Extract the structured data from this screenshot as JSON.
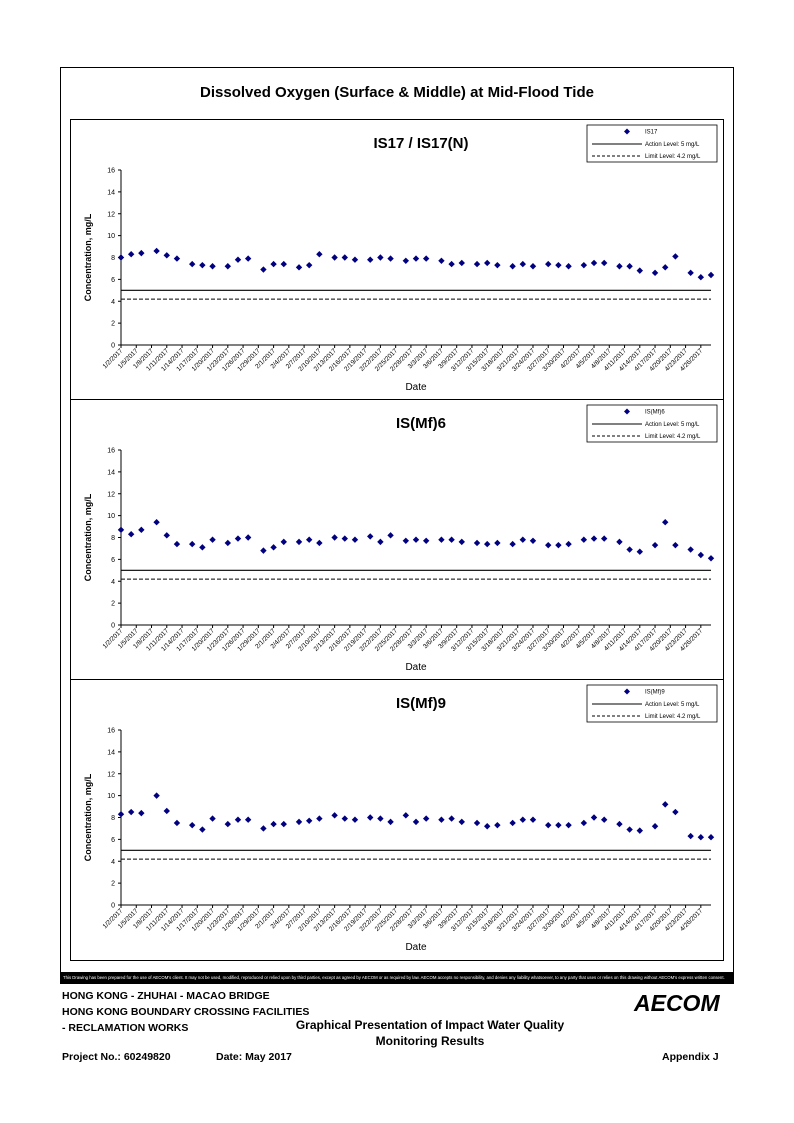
{
  "page": {
    "main_title": "Dissolved Oxygen (Surface & Middle) at Mid-Flood Tide",
    "disclaimer": "This Drawing has been prepared for the use of AECOM's client. It may not be used, modified, reproduced or relied upon by third parties, except as agreed by AECOM or as required by law. AECOM accepts no responsibility, and denies any liability whatsoever, to any party that uses or relies on this drawing without AECOM's express written consent.",
    "footer": {
      "line1": "HONG KONG - ZHUHAI - MACAO BRIDGE",
      "line2": "HONG KONG BOUNDARY CROSSING FACILITIES",
      "line3": "- RECLAMATION WORKS",
      "center_line1": "Graphical Presentation of Impact Water Quality",
      "center_line2": "Monitoring Results",
      "project": "Project No.: 60249820",
      "date": "Date: May 2017",
      "appendix": "Appendix J",
      "logo": "AECOM"
    }
  },
  "chart_data": [
    {
      "type": "scatter",
      "title": "IS17 / IS17(N)",
      "xlabel": "Date",
      "ylabel": "Concentration, mg/L",
      "ylim": [
        0,
        16
      ],
      "yticks": [
        0,
        2,
        4,
        6,
        8,
        10,
        12,
        14,
        16
      ],
      "categories": [
        "1/2/2017",
        "1/5/2017",
        "1/8/2017",
        "1/11/2017",
        "1/14/2017",
        "1/17/2017",
        "1/20/2017",
        "1/23/2017",
        "1/26/2017",
        "1/29/2017",
        "2/1/2017",
        "2/4/2017",
        "2/7/2017",
        "2/10/2017",
        "2/13/2017",
        "2/16/2017",
        "2/19/2017",
        "2/22/2017",
        "2/25/2017",
        "2/28/2017",
        "3/3/2017",
        "3/6/2017",
        "3/9/2017",
        "3/12/2017",
        "3/15/2017",
        "3/18/2017",
        "3/21/2017",
        "3/24/2017",
        "3/27/2017",
        "3/30/2017",
        "4/2/2017",
        "4/5/2017",
        "4/8/2017",
        "4/11/2017",
        "4/14/2017",
        "4/17/2017",
        "4/20/2017",
        "4/23/2017",
        "4/26/2017"
      ],
      "series": [
        {
          "name": "IS17",
          "marker": "diamond",
          "color": "#000080",
          "x": [
            0,
            2,
            4,
            7,
            9,
            11,
            14,
            16,
            18,
            21,
            23,
            25,
            28,
            30,
            32,
            35,
            37,
            39,
            42,
            44,
            46,
            49,
            51,
            53,
            56,
            58,
            60,
            63,
            65,
            67,
            70,
            72,
            74,
            77,
            79,
            81,
            84,
            86,
            88,
            91,
            93,
            95,
            98,
            100,
            102,
            105,
            107,
            109,
            112,
            114,
            116
          ],
          "y": [
            8.0,
            8.3,
            8.4,
            8.6,
            8.2,
            7.9,
            7.4,
            7.3,
            7.2,
            7.2,
            7.8,
            7.9,
            6.9,
            7.4,
            7.4,
            7.1,
            7.3,
            8.3,
            8.0,
            8.0,
            7.8,
            7.8,
            8.0,
            7.9,
            7.7,
            7.9,
            7.9,
            7.7,
            7.4,
            7.5,
            7.4,
            7.5,
            7.3,
            7.2,
            7.4,
            7.2,
            7.4,
            7.3,
            7.2,
            7.3,
            7.5,
            7.5,
            7.2,
            7.2,
            6.8,
            6.6,
            7.1,
            8.1,
            6.6,
            6.2,
            6.4
          ]
        },
        {
          "name": "Action Level: 5 mg/L",
          "line": "solid",
          "value": 5
        },
        {
          "name": "Limit Level: 4.2 mg/L",
          "line": "dashed",
          "value": 4.2
        }
      ],
      "legend": "top-right"
    },
    {
      "type": "scatter",
      "title": "IS(Mf)6",
      "xlabel": "Date",
      "ylabel": "Concentration, mg/L",
      "ylim": [
        0,
        16
      ],
      "yticks": [
        0,
        2,
        4,
        6,
        8,
        10,
        12,
        14,
        16
      ],
      "categories": [
        "1/2/2017",
        "1/5/2017",
        "1/8/2017",
        "1/11/2017",
        "1/14/2017",
        "1/17/2017",
        "1/20/2017",
        "1/23/2017",
        "1/26/2017",
        "1/29/2017",
        "2/1/2017",
        "2/4/2017",
        "2/7/2017",
        "2/10/2017",
        "2/13/2017",
        "2/16/2017",
        "2/19/2017",
        "2/22/2017",
        "2/25/2017",
        "2/28/2017",
        "3/3/2017",
        "3/6/2017",
        "3/9/2017",
        "3/12/2017",
        "3/15/2017",
        "3/18/2017",
        "3/21/2017",
        "3/24/2017",
        "3/27/2017",
        "3/30/2017",
        "4/2/2017",
        "4/5/2017",
        "4/8/2017",
        "4/11/2017",
        "4/14/2017",
        "4/17/2017",
        "4/20/2017",
        "4/23/2017",
        "4/26/2017"
      ],
      "series": [
        {
          "name": "IS(Mf)6",
          "marker": "diamond",
          "color": "#000080",
          "x": [
            0,
            2,
            4,
            7,
            9,
            11,
            14,
            16,
            18,
            21,
            23,
            25,
            28,
            30,
            32,
            35,
            37,
            39,
            42,
            44,
            46,
            49,
            51,
            53,
            56,
            58,
            60,
            63,
            65,
            67,
            70,
            72,
            74,
            77,
            79,
            81,
            84,
            86,
            88,
            91,
            93,
            95,
            98,
            100,
            102,
            105,
            107,
            109,
            112,
            114,
            116
          ],
          "y": [
            8.7,
            8.3,
            8.7,
            9.4,
            8.2,
            7.4,
            7.4,
            7.1,
            7.8,
            7.5,
            7.9,
            8.0,
            6.8,
            7.1,
            7.6,
            7.6,
            7.8,
            7.5,
            8.0,
            7.9,
            7.8,
            8.1,
            7.6,
            8.2,
            7.7,
            7.8,
            7.7,
            7.8,
            7.8,
            7.6,
            7.5,
            7.4,
            7.5,
            7.4,
            7.8,
            7.7,
            7.3,
            7.3,
            7.4,
            7.8,
            7.9,
            7.9,
            7.6,
            6.9,
            6.7,
            7.3,
            9.4,
            7.3,
            6.9,
            6.4,
            6.1
          ]
        },
        {
          "name": "Action Level: 5 mg/L",
          "line": "solid",
          "value": 5
        },
        {
          "name": "Limit Level: 4.2 mg/L",
          "line": "dashed",
          "value": 4.2
        }
      ],
      "legend": "top-right"
    },
    {
      "type": "scatter",
      "title": "IS(Mf)9",
      "xlabel": "Date",
      "ylabel": "Concentration, mg/L",
      "ylim": [
        0,
        16
      ],
      "yticks": [
        0,
        2,
        4,
        6,
        8,
        10,
        12,
        14,
        16
      ],
      "categories": [
        "1/2/2017",
        "1/5/2017",
        "1/8/2017",
        "1/11/2017",
        "1/14/2017",
        "1/17/2017",
        "1/20/2017",
        "1/23/2017",
        "1/26/2017",
        "1/29/2017",
        "2/1/2017",
        "2/4/2017",
        "2/7/2017",
        "2/10/2017",
        "2/13/2017",
        "2/16/2017",
        "2/19/2017",
        "2/22/2017",
        "2/25/2017",
        "2/28/2017",
        "3/3/2017",
        "3/6/2017",
        "3/9/2017",
        "3/12/2017",
        "3/15/2017",
        "3/18/2017",
        "3/21/2017",
        "3/24/2017",
        "3/27/2017",
        "3/30/2017",
        "4/2/2017",
        "4/5/2017",
        "4/8/2017",
        "4/11/2017",
        "4/14/2017",
        "4/17/2017",
        "4/20/2017",
        "4/23/2017",
        "4/26/2017"
      ],
      "series": [
        {
          "name": "IS(Mf)9",
          "marker": "diamond",
          "color": "#000080",
          "x": [
            0,
            2,
            4,
            7,
            9,
            11,
            14,
            16,
            18,
            21,
            23,
            25,
            28,
            30,
            32,
            35,
            37,
            39,
            42,
            44,
            46,
            49,
            51,
            53,
            56,
            58,
            60,
            63,
            65,
            67,
            70,
            72,
            74,
            77,
            79,
            81,
            84,
            86,
            88,
            91,
            93,
            95,
            98,
            100,
            102,
            105,
            107,
            109,
            112,
            114,
            116
          ],
          "y": [
            8.3,
            8.5,
            8.4,
            10.0,
            8.6,
            7.5,
            7.3,
            6.9,
            7.9,
            7.4,
            7.8,
            7.8,
            7.0,
            7.4,
            7.4,
            7.6,
            7.7,
            7.9,
            8.2,
            7.9,
            7.8,
            8.0,
            7.9,
            7.6,
            8.2,
            7.6,
            7.9,
            7.8,
            7.9,
            7.6,
            7.5,
            7.2,
            7.3,
            7.5,
            7.8,
            7.8,
            7.3,
            7.3,
            7.3,
            7.5,
            8.0,
            7.8,
            7.4,
            6.9,
            6.8,
            7.2,
            9.2,
            8.5,
            6.3,
            6.2,
            6.2
          ]
        },
        {
          "name": "Action Level: 5 mg/L",
          "line": "solid",
          "value": 5
        },
        {
          "name": "Limit Level: 4.2 mg/L",
          "line": "dashed",
          "value": 4.2
        }
      ],
      "legend": "top-right"
    }
  ]
}
